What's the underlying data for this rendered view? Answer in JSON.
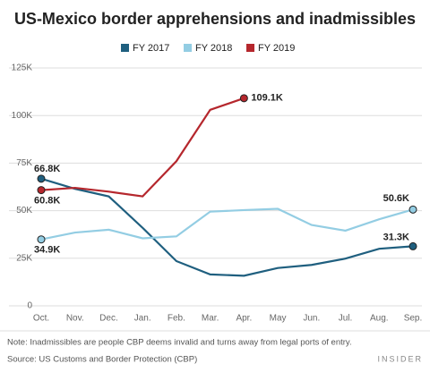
{
  "chart_data": {
    "type": "line",
    "title": "US-Mexico border apprehensions and inadmissibles",
    "categories": [
      "Oct.",
      "Nov.",
      "Dec.",
      "Jan.",
      "Feb.",
      "Mar.",
      "Apr.",
      "May",
      "Jun.",
      "Jul.",
      "Aug.",
      "Sep."
    ],
    "series": [
      {
        "name": "FY 2017",
        "color": "#1f5f7f",
        "values": [
          66800,
          61500,
          57500,
          41000,
          23500,
          16500,
          15800,
          19900,
          21500,
          24800,
          30000,
          31300
        ],
        "value_labels": [
          "66.8K",
          null,
          null,
          null,
          null,
          null,
          null,
          null,
          null,
          null,
          null,
          "31.3K"
        ]
      },
      {
        "name": "FY 2018",
        "color": "#93cde3",
        "values": [
          34900,
          38500,
          40000,
          35500,
          36500,
          49500,
          50300,
          51000,
          42500,
          39500,
          45500,
          50600
        ],
        "value_labels": [
          "34.9K",
          null,
          null,
          null,
          null,
          null,
          null,
          null,
          null,
          null,
          null,
          "50.6K"
        ]
      },
      {
        "name": "FY 2019",
        "color": "#b5272d",
        "values": [
          60800,
          62000,
          60000,
          57500,
          76000,
          103000,
          109100,
          null,
          null,
          null,
          null,
          null
        ],
        "value_labels": [
          "60.8K",
          null,
          null,
          null,
          null,
          null,
          "109.1K",
          null,
          null,
          null,
          null,
          null
        ]
      }
    ],
    "ylim": [
      0,
      125000
    ],
    "yticks": [
      0,
      {
        "value": 25000,
        "label": "25K"
      },
      {
        "value": 50000,
        "label": "50K"
      },
      {
        "value": 75000,
        "label": "75K"
      },
      {
        "value": 100000,
        "label": "100K"
      },
      {
        "value": 125000,
        "label": "125K"
      }
    ],
    "grid": true,
    "legend": "top",
    "note": "Note: Inadmissibles are people CBP deems invalid and turns away from legal ports of entry.",
    "source": "Source: US Customs and Border Protection (CBP)",
    "logo": "INSIDER"
  }
}
